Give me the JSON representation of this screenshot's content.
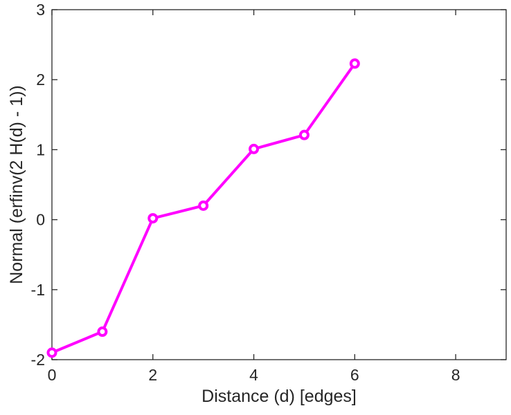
{
  "chart_data": {
    "type": "line",
    "title": "",
    "xlabel": "Distance (d) [edges]",
    "ylabel": "Normal (erfinv(2 H(d) - 1))",
    "x": [
      0,
      1,
      2,
      3,
      4,
      5,
      6
    ],
    "y": [
      -1.9,
      -1.6,
      0.02,
      0.2,
      1.01,
      1.21,
      2.23
    ],
    "xlim": [
      0,
      9
    ],
    "ylim": [
      -2,
      3
    ],
    "xticks": [
      0,
      2,
      4,
      6,
      8
    ],
    "yticks": [
      -2,
      -1,
      0,
      1,
      2,
      3
    ],
    "grid": false,
    "legend_position": "none",
    "series_color": "#ff00ff",
    "marker": "circle",
    "marker_face_color": "#ffffff",
    "axis_color": "#262626",
    "line_width": 4
  }
}
